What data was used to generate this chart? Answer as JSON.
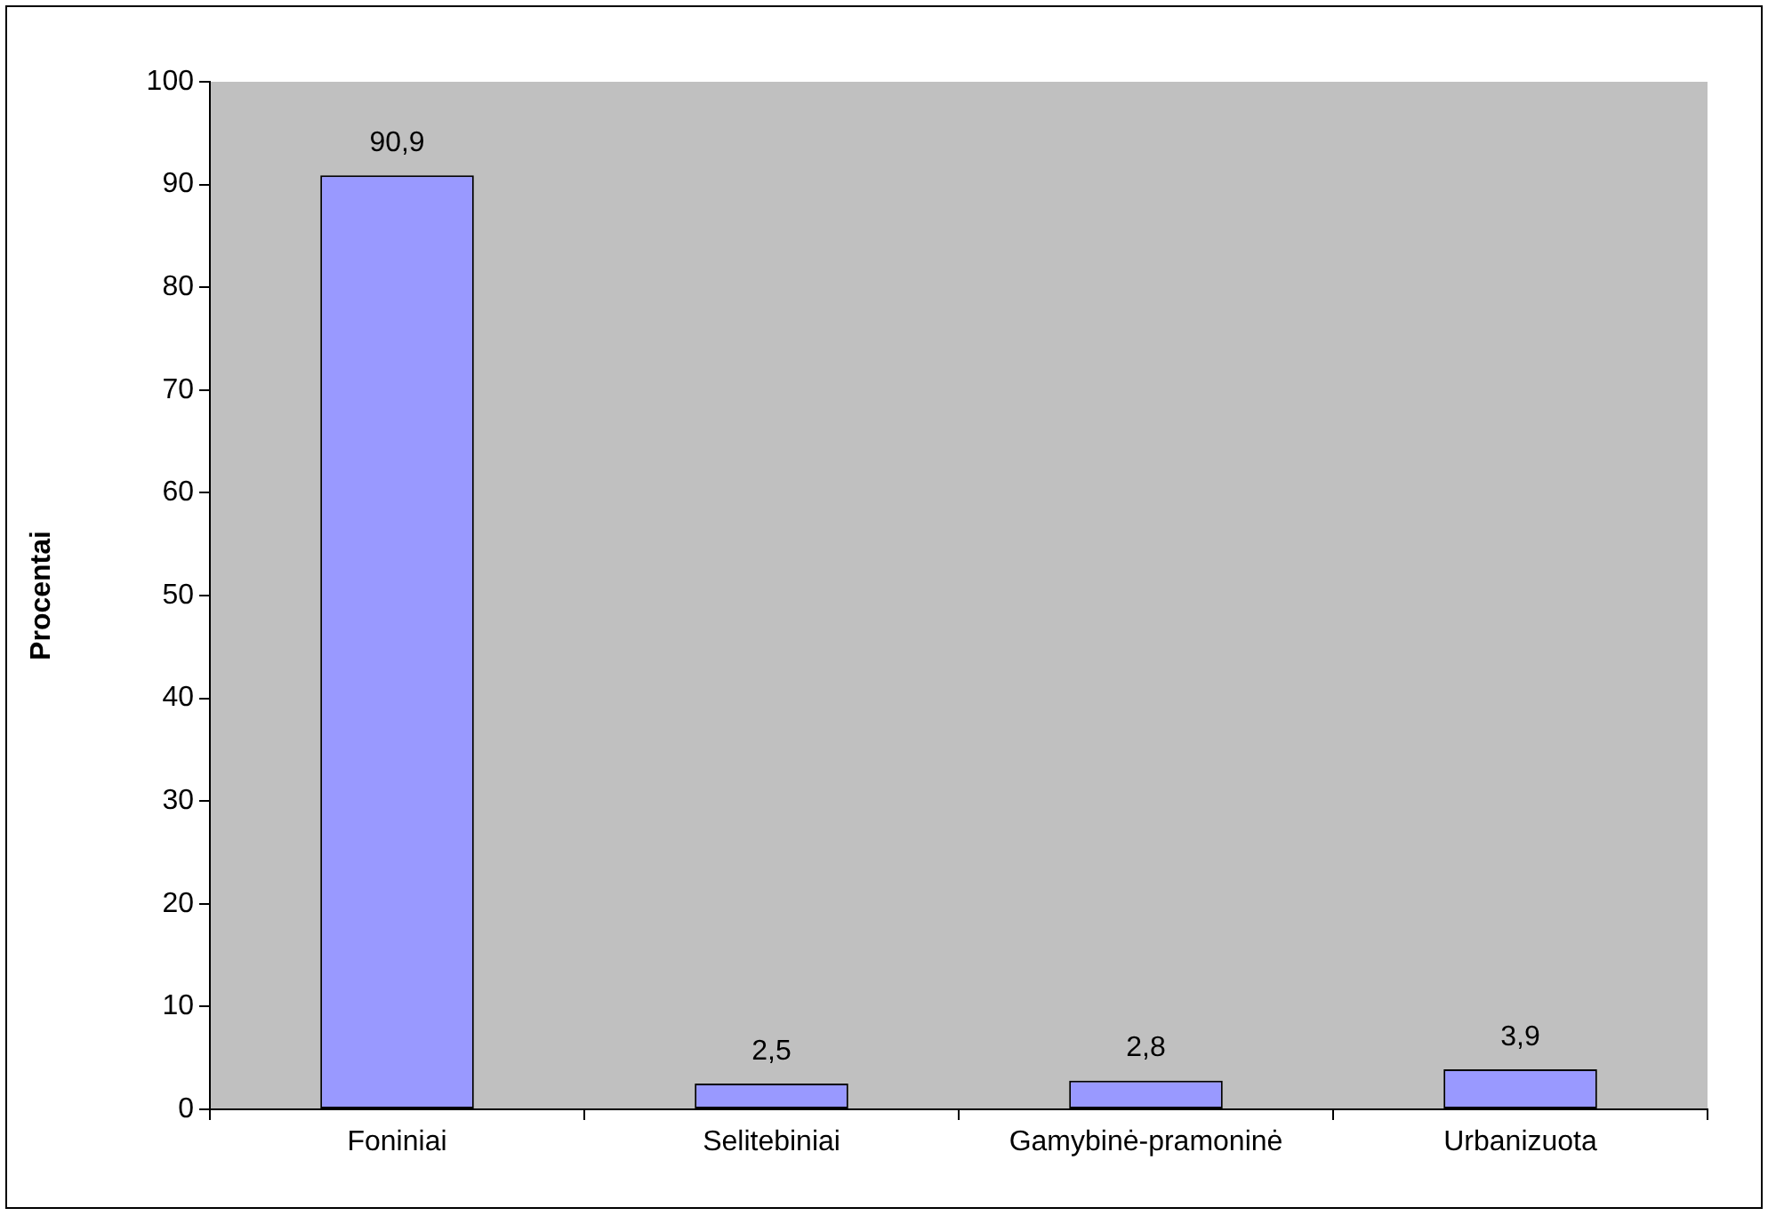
{
  "chart_data": {
    "type": "bar",
    "ylabel": "Procentai",
    "categories": [
      "Foniniai",
      "Selitebiniai",
      "Gamybinė-pramoninė",
      "Urbanizuota"
    ],
    "values": [
      90.9,
      2.5,
      2.8,
      3.9
    ],
    "value_labels": [
      "90,9",
      "2,5",
      "2,8",
      "3,9"
    ],
    "color": "#9999ff",
    "ylim": [
      0,
      100
    ],
    "yticks": [
      0,
      10,
      20,
      30,
      40,
      50,
      60,
      70,
      80,
      90,
      100
    ],
    "grid": false,
    "legend": false
  }
}
